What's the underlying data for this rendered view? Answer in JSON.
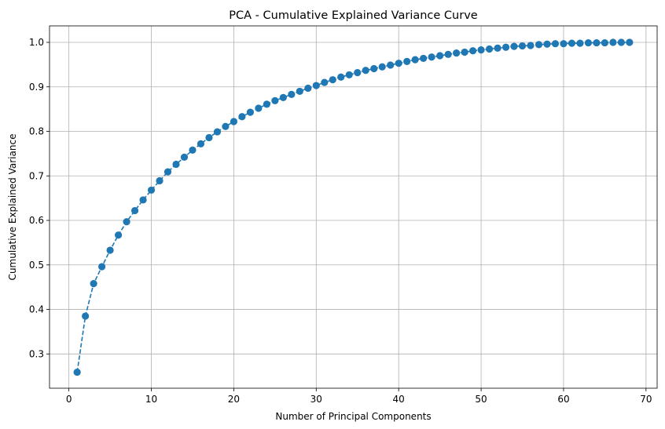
{
  "chart_data": {
    "type": "line",
    "title": "PCA - Cumulative Explained Variance Curve",
    "xlabel": "Number of Principal Components",
    "ylabel": "Cumulative Explained Variance",
    "xlim": [
      -2.35,
      71.35
    ],
    "ylim": [
      0.223,
      1.037
    ],
    "xticks": [
      0,
      10,
      20,
      30,
      40,
      50,
      60,
      70
    ],
    "yticks": [
      0.3,
      0.4,
      0.5,
      0.6,
      0.7,
      0.8,
      0.9,
      1.0
    ],
    "xtick_labels": [
      "0",
      "10",
      "20",
      "30",
      "40",
      "50",
      "60",
      "70"
    ],
    "ytick_labels": [
      "0.3",
      "0.4",
      "0.5",
      "0.6",
      "0.7",
      "0.8",
      "0.9",
      "1.0"
    ],
    "grid": true,
    "line_style": "dashed",
    "marker": "circle",
    "color": "#1f77b4",
    "series": [
      {
        "x": [
          1,
          2,
          3,
          4,
          5,
          6,
          7,
          8,
          9,
          10,
          11,
          12,
          13,
          14,
          15,
          16,
          17,
          18,
          19,
          20,
          21,
          22,
          23,
          24,
          25,
          26,
          27,
          28,
          29,
          30,
          31,
          32,
          33,
          34,
          35,
          36,
          37,
          38,
          39,
          40,
          41,
          42,
          43,
          44,
          45,
          46,
          47,
          48,
          49,
          50,
          51,
          52,
          53,
          54,
          55,
          56,
          57,
          58,
          59,
          60,
          61,
          62,
          63,
          64,
          65,
          66,
          67,
          68
        ],
        "values": [
          0.259,
          0.385,
          0.458,
          0.496,
          0.533,
          0.567,
          0.597,
          0.622,
          0.646,
          0.668,
          0.689,
          0.709,
          0.726,
          0.742,
          0.758,
          0.772,
          0.786,
          0.799,
          0.811,
          0.822,
          0.833,
          0.843,
          0.852,
          0.861,
          0.869,
          0.876,
          0.883,
          0.89,
          0.897,
          0.903,
          0.91,
          0.916,
          0.922,
          0.927,
          0.932,
          0.937,
          0.941,
          0.945,
          0.949,
          0.953,
          0.957,
          0.961,
          0.964,
          0.967,
          0.97,
          0.973,
          0.976,
          0.978,
          0.981,
          0.983,
          0.985,
          0.987,
          0.989,
          0.991,
          0.992,
          0.993,
          0.995,
          0.996,
          0.997,
          0.997,
          0.998,
          0.998,
          0.999,
          0.999,
          0.999,
          1.0,
          1.0,
          1.0
        ]
      }
    ]
  }
}
